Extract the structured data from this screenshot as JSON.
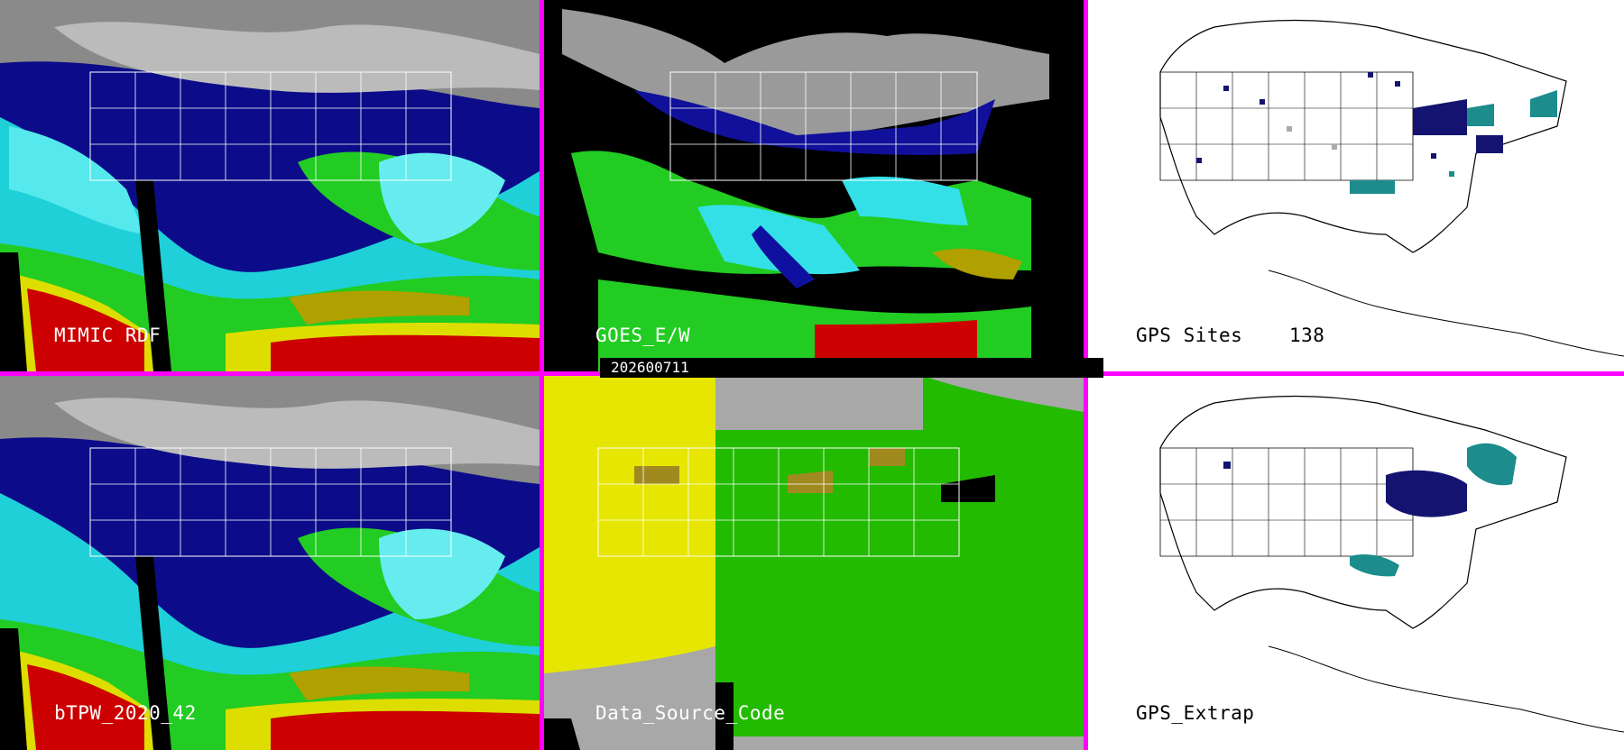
{
  "panels": {
    "p1": {
      "label": "MIMIC RDF"
    },
    "p2": {
      "label": "GOES_E/W"
    },
    "p3": {
      "label": "GPS Sites",
      "count": "138"
    },
    "p4": {
      "label": "bTPW_2020_42"
    },
    "p5": {
      "label": "Data_Source_Code"
    },
    "p6": {
      "label": "GPS_Extrap"
    }
  },
  "timestamp": "202600711",
  "colors": {
    "divider": "#ff00ff",
    "ocean_cyan": "#33e0e8",
    "moist_green": "#22cc22",
    "dry_blue": "#1010a0",
    "hot_red": "#cc0000",
    "yellow": "#dddd00",
    "gray_cloud": "#9a9a9a",
    "source_gray": "#a8a8a8",
    "source_yellow": "#e6e600",
    "source_green": "#22bb00",
    "gps_dark": "#141470",
    "gps_teal": "#1c8c8c"
  }
}
